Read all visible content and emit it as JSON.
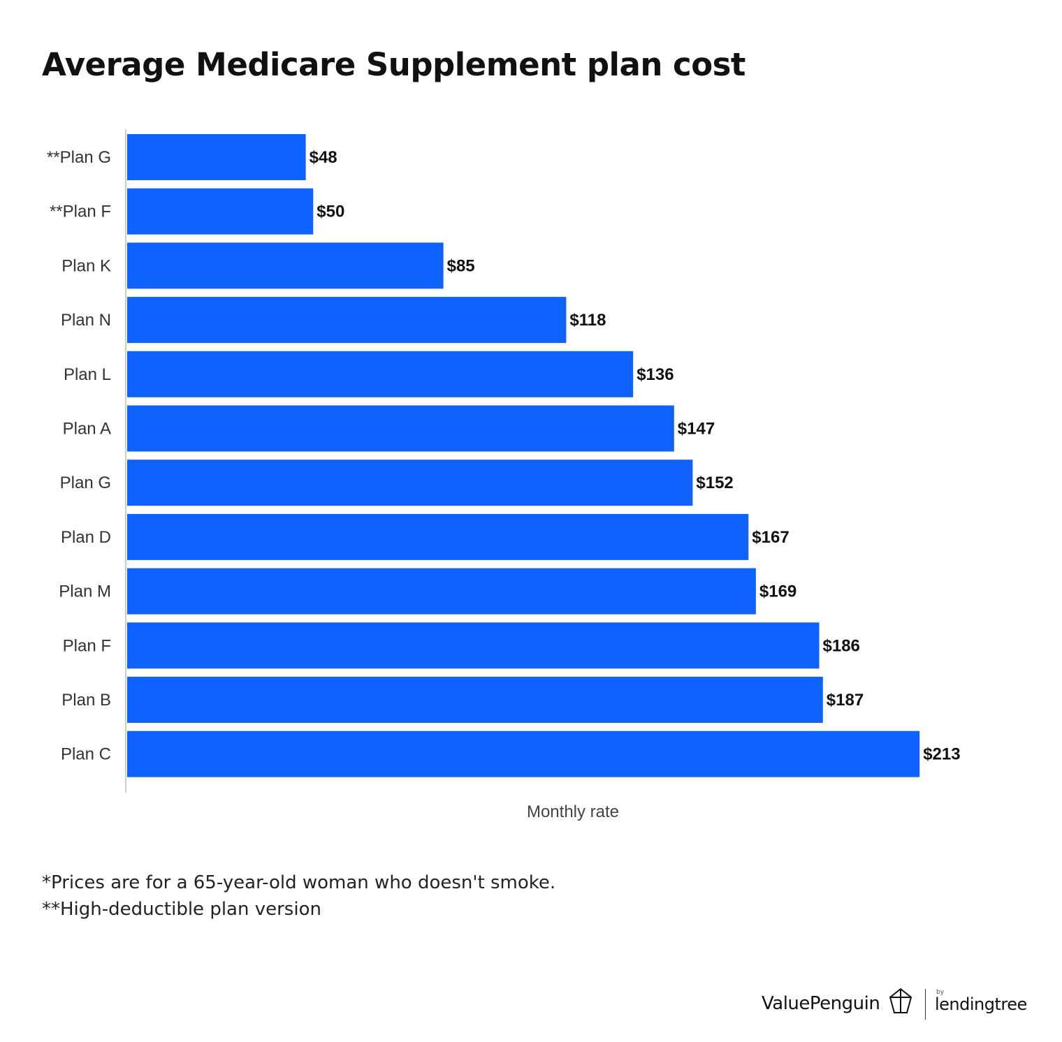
{
  "title": "Average Medicare Supplement plan cost",
  "chart_data": {
    "type": "bar",
    "orientation": "horizontal",
    "categories": [
      "**Plan G",
      "**Plan F",
      "Plan K",
      "Plan N",
      "Plan L",
      "Plan A",
      "Plan G",
      "Plan D",
      "Plan M",
      "Plan F",
      "Plan B",
      "Plan C"
    ],
    "values": [
      48,
      50,
      85,
      118,
      136,
      147,
      152,
      167,
      169,
      186,
      187,
      213
    ],
    "value_labels": [
      "$48",
      "$50",
      "$85",
      "$118",
      "$136",
      "$147",
      "$152",
      "$167",
      "$169",
      "$186",
      "$187",
      "$213"
    ],
    "xlabel": "Monthly rate",
    "ylabel": "",
    "xlim": [
      0,
      240
    ],
    "grid": false,
    "bar_color": "#0f62fe"
  },
  "footnotes": [
    "*Prices are for a 65-year-old woman who doesn't smoke.",
    "**High-deductible plan version"
  ],
  "branding": {
    "valuepenguin": "ValuePenguin",
    "by": "by",
    "lendingtree": "lendingtree"
  }
}
